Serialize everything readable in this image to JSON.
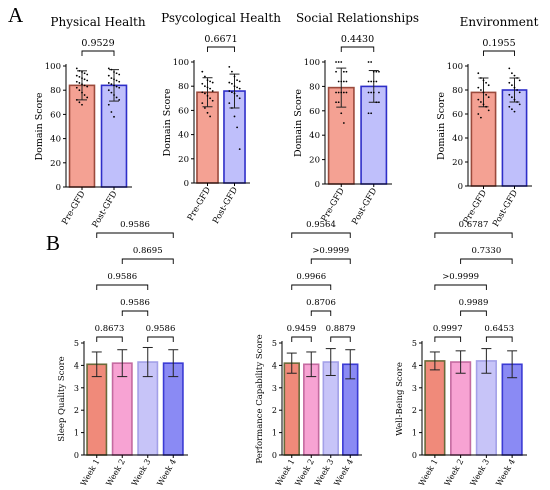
{
  "panel_labels": [
    "A",
    "B"
  ],
  "chart_data": [
    {
      "type": "bar",
      "panel": "A",
      "title": "Physical Health",
      "ylabel": "Domain Score",
      "categories": [
        "Pre-GFD",
        "Post-GFD"
      ],
      "values": [
        84,
        84
      ],
      "sd": [
        12,
        13
      ],
      "ylim": [
        0,
        100
      ],
      "yticks": [
        0,
        20,
        40,
        60,
        80,
        100
      ],
      "bar_fills": [
        "#f4a193",
        "#bfbffb"
      ],
      "bar_strokes": [
        "#9b4a3c",
        "#2e2ec8"
      ],
      "points": [
        [
          98,
          96,
          95,
          94,
          93,
          92,
          91,
          90,
          89,
          88,
          87,
          86,
          85,
          84,
          83,
          82,
          80,
          78,
          76,
          74,
          72,
          70,
          68
        ],
        [
          98,
          97,
          95,
          94,
          93,
          92,
          90,
          89,
          88,
          87,
          86,
          85,
          84,
          83,
          82,
          80,
          78,
          76,
          74,
          72,
          68,
          62,
          58
        ]
      ],
      "comparisons": [
        {
          "a": 0,
          "b": 1,
          "p": "0.9529"
        }
      ]
    },
    {
      "type": "bar",
      "panel": "A",
      "title": "Psycological Health",
      "ylabel": "Domain Score",
      "categories": [
        "Pre-GFD",
        "Post-GFD"
      ],
      "values": [
        75,
        76
      ],
      "sd": [
        12,
        14
      ],
      "ylim": [
        0,
        100
      ],
      "yticks": [
        0,
        20,
        40,
        60,
        80,
        100
      ],
      "bar_fills": [
        "#f4a193",
        "#bfbffb"
      ],
      "bar_strokes": [
        "#9b4a3c",
        "#2e2ec8"
      ],
      "points": [
        [
          92,
          88,
          85,
          84,
          83,
          82,
          80,
          79,
          78,
          76,
          75,
          74,
          72,
          70,
          68,
          66,
          62,
          58,
          55
        ],
        [
          96,
          92,
          88,
          85,
          84,
          83,
          82,
          80,
          79,
          78,
          76,
          75,
          74,
          72,
          70,
          66,
          62,
          55,
          46,
          28
        ]
      ],
      "comparisons": [
        {
          "a": 0,
          "b": 1,
          "p": "0.6671"
        }
      ]
    },
    {
      "type": "bar",
      "panel": "A",
      "title": "Social Relationships",
      "ylabel": "Domain Score",
      "categories": [
        "Pre-GFD",
        "Post-GFD"
      ],
      "values": [
        79,
        80
      ],
      "sd": [
        16,
        13
      ],
      "ylim": [
        0,
        100
      ],
      "yticks": [
        0,
        20,
        40,
        60,
        80,
        100
      ],
      "bar_fills": [
        "#f4a193",
        "#bfbffb"
      ],
      "bar_strokes": [
        "#9b4a3c",
        "#2e2ec8"
      ],
      "points": [
        [
          100,
          100,
          100,
          92,
          92,
          92,
          84,
          84,
          84,
          84,
          75,
          75,
          75,
          75,
          75,
          67,
          67,
          58,
          50
        ],
        [
          100,
          100,
          92,
          92,
          92,
          84,
          84,
          84,
          84,
          75,
          75,
          75,
          75,
          67,
          67,
          58,
          58
        ]
      ],
      "comparisons": [
        {
          "a": 0,
          "b": 1,
          "p": "0.4430"
        }
      ]
    },
    {
      "type": "bar",
      "panel": "A",
      "title": "Environment",
      "ylabel": "Domain Score",
      "categories": [
        "Pre-GFD",
        "Post-GFD"
      ],
      "values": [
        78,
        80
      ],
      "sd": [
        12,
        10
      ],
      "ylim": [
        0,
        100
      ],
      "yticks": [
        0,
        20,
        40,
        60,
        80,
        100
      ],
      "bar_fills": [
        "#f4a193",
        "#bfbffb"
      ],
      "bar_strokes": [
        "#9b4a3c",
        "#2e2ec8"
      ],
      "points": [
        [
          94,
          90,
          88,
          86,
          84,
          82,
          80,
          78,
          76,
          74,
          72,
          70,
          68,
          66,
          63,
          60,
          57
        ],
        [
          98,
          94,
          92,
          90,
          88,
          86,
          84,
          82,
          80,
          78,
          76,
          74,
          72,
          70,
          68,
          66,
          64,
          62
        ]
      ],
      "comparisons": [
        {
          "a": 0,
          "b": 1,
          "p": "0.1955"
        }
      ]
    },
    {
      "type": "bar",
      "panel": "B",
      "title": "",
      "ylabel": "Sleep Quality Score",
      "categories": [
        "Week 1",
        "Week 2",
        "Week 3",
        "Week 4"
      ],
      "values": [
        4.05,
        4.1,
        4.15,
        4.1
      ],
      "sd": [
        0.55,
        0.6,
        0.65,
        0.6
      ],
      "ylim": [
        0,
        5
      ],
      "yticks": [
        0,
        1,
        2,
        3,
        4,
        5
      ],
      "bar_fills": [
        "#f08a7a",
        "#f7a3d3",
        "#c7c4f8",
        "#8a8af4"
      ],
      "bar_strokes": [
        "#6a6a3a",
        "#c46aa0",
        "#a3a0e8",
        "#3b3bd4"
      ],
      "comparisons": [
        {
          "a": 0,
          "b": 1,
          "p": "0.8673"
        },
        {
          "a": 2,
          "b": 3,
          "p": "0.9586"
        },
        {
          "a": 1,
          "b": 2,
          "p": "0.9586"
        },
        {
          "a": 0,
          "b": 2,
          "p": "0.9586"
        },
        {
          "a": 1,
          "b": 3,
          "p": "0.8695"
        },
        {
          "a": 0,
          "b": 3,
          "p": "0.9586"
        }
      ]
    },
    {
      "type": "bar",
      "panel": "B",
      "title": "",
      "ylabel": "Performance Capability Score",
      "categories": [
        "Week 1",
        "Week 2",
        "Week 3",
        "Week 4"
      ],
      "values": [
        4.1,
        4.05,
        4.15,
        4.05
      ],
      "sd": [
        0.45,
        0.55,
        0.6,
        0.65
      ],
      "ylim": [
        0,
        5
      ],
      "yticks": [
        0,
        1,
        2,
        3,
        4,
        5
      ],
      "bar_fills": [
        "#f08a7a",
        "#f7a3d3",
        "#c7c4f8",
        "#8a8af4"
      ],
      "bar_strokes": [
        "#6a6a3a",
        "#c46aa0",
        "#a3a0e8",
        "#3b3bd4"
      ],
      "comparisons": [
        {
          "a": 0,
          "b": 1,
          "p": "0.9459"
        },
        {
          "a": 2,
          "b": 3,
          "p": "0.8879"
        },
        {
          "a": 1,
          "b": 2,
          "p": "0.8706"
        },
        {
          "a": 0,
          "b": 2,
          "p": "0.9966"
        },
        {
          "a": 1,
          "b": 3,
          "p": ">0.9999"
        },
        {
          "a": 0,
          "b": 3,
          "p": "0.9564"
        }
      ]
    },
    {
      "type": "bar",
      "panel": "B",
      "title": "",
      "ylabel": "Well-Being Score",
      "categories": [
        "Week 1",
        "Week 2",
        "Week 3",
        "Week 4"
      ],
      "values": [
        4.2,
        4.15,
        4.2,
        4.05
      ],
      "sd": [
        0.4,
        0.5,
        0.55,
        0.6
      ],
      "ylim": [
        0,
        5
      ],
      "yticks": [
        0,
        1,
        2,
        3,
        4,
        5
      ],
      "bar_fills": [
        "#f08a7a",
        "#f7a3d3",
        "#c7c4f8",
        "#8a8af4"
      ],
      "bar_strokes": [
        "#6a6a3a",
        "#c46aa0",
        "#a3a0e8",
        "#3b3bd4"
      ],
      "comparisons": [
        {
          "a": 0,
          "b": 1,
          "p": "0.9997"
        },
        {
          "a": 2,
          "b": 3,
          "p": "0.6453"
        },
        {
          "a": 1,
          "b": 2,
          "p": "0.9989"
        },
        {
          "a": 0,
          "b": 2,
          "p": ">0.9999"
        },
        {
          "a": 1,
          "b": 3,
          "p": "0.7330"
        },
        {
          "a": 0,
          "b": 3,
          "p": "0.6787"
        }
      ]
    }
  ]
}
